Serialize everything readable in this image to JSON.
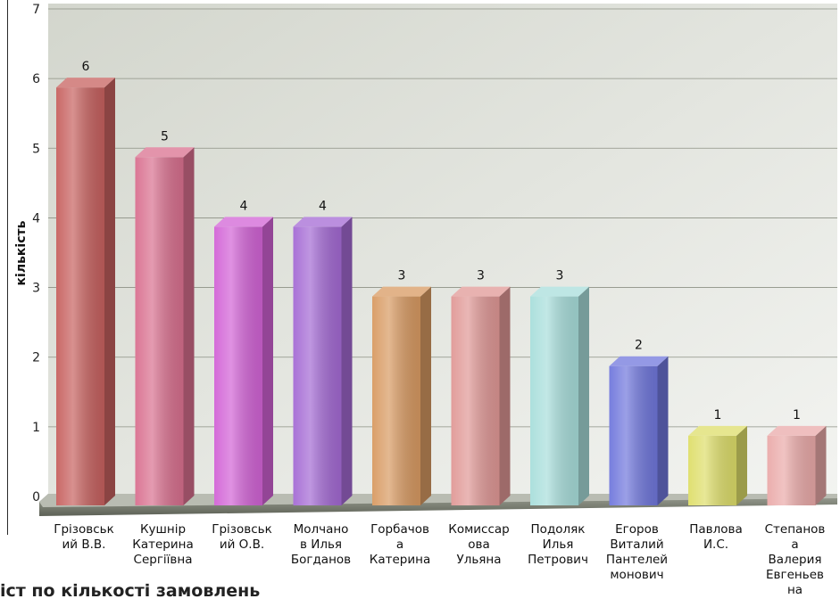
{
  "caption": "іст по кількості замовлень",
  "chart_data": {
    "type": "bar",
    "title": "",
    "xlabel": "",
    "ylabel": "кількість",
    "ylim": [
      0,
      7
    ],
    "yticks": [
      0,
      1,
      2,
      3,
      4,
      5,
      6,
      7
    ],
    "grid": true,
    "categories": [
      [
        "Грізовськ",
        "ий В.В."
      ],
      [
        "Кушнір",
        "Катерина",
        "Сергіївна"
      ],
      [
        "Грізовськ",
        "ий О.В."
      ],
      [
        "Молчано",
        "в Илья",
        "Богданов"
      ],
      [
        "Горбачов",
        "а",
        "Катерина"
      ],
      [
        "Комиссар",
        "ова",
        "Ульяна"
      ],
      [
        "Подоляк",
        "Илья",
        "Петрович"
      ],
      [
        "Егоров",
        "Виталий",
        "Пантелей",
        "монович"
      ],
      [
        "Павлова",
        "И.С."
      ],
      [
        "Степанов",
        "а",
        "Валерия",
        "Евгеньев",
        "на"
      ]
    ],
    "values": [
      6,
      5,
      4,
      4,
      3,
      3,
      3,
      2,
      1,
      1
    ],
    "value_labels": [
      "6",
      "5",
      "4",
      "4",
      "3",
      "3",
      "3",
      "2",
      "1",
      "1"
    ],
    "colors": [
      "#c7615f",
      "#d9708f",
      "#d263d6",
      "#a46ad4",
      "#d89a62",
      "#e09896",
      "#a8dedb",
      "#7077dc",
      "#dede6a",
      "#eaaaa9"
    ]
  }
}
